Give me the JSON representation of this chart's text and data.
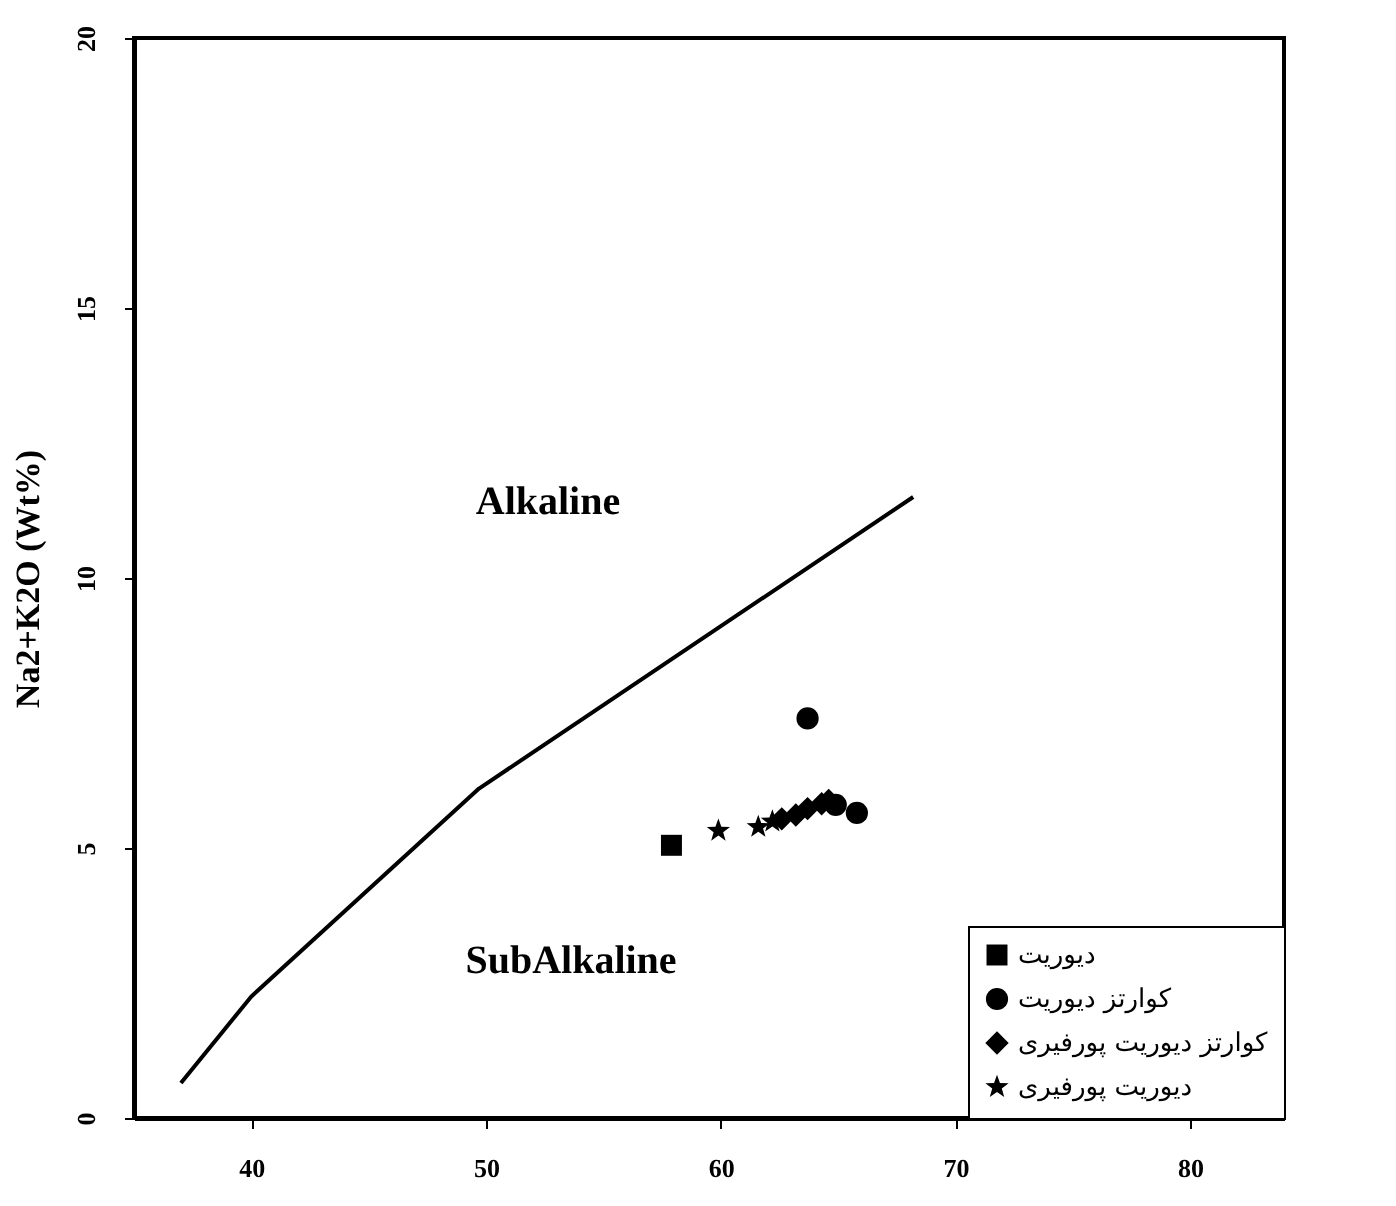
{
  "chart_data": {
    "type": "scatter",
    "ylabel": "Na2+K2O (Wt%)",
    "xlim": [
      35,
      84
    ],
    "ylim": [
      0,
      20
    ],
    "xticks": [
      40,
      50,
      60,
      70,
      80
    ],
    "yticks": [
      0,
      5,
      10,
      15,
      20
    ],
    "grid": false,
    "legend": "bottom right",
    "annotations": [
      "Alkaline",
      "SubAlkaline"
    ],
    "series": [
      {
        "type": "line",
        "color": "#000000",
        "marker": "none",
        "line_style": "solid",
        "x": [
          37.0,
          40.0,
          49.7,
          68.2
        ],
        "values": [
          0.65,
          2.25,
          6.1,
          11.5
        ]
      },
      {
        "name": "دیوریت",
        "color": "#000000",
        "marker": "square",
        "x": [
          57.9
        ],
        "values": [
          5.05
        ]
      },
      {
        "name": "کوارتز دیوریت",
        "color": "#000000",
        "marker": "circle",
        "x": [
          63.7,
          64.9,
          65.8
        ],
        "values": [
          7.4,
          5.8,
          5.65
        ]
      },
      {
        "name": "کوارتز دیوریت پورفیری",
        "color": "#000000",
        "marker": "diamond",
        "x": [
          62.6,
          63.2,
          63.7,
          64.3,
          64.6
        ],
        "values": [
          5.54,
          5.61,
          5.73,
          5.82,
          5.88
        ]
      },
      {
        "name": "دیوریت پورفیری",
        "color": "#000000",
        "marker": "star",
        "x": [
          59.9,
          61.6,
          62.2
        ],
        "values": [
          5.32,
          5.39,
          5.49
        ]
      }
    ]
  }
}
